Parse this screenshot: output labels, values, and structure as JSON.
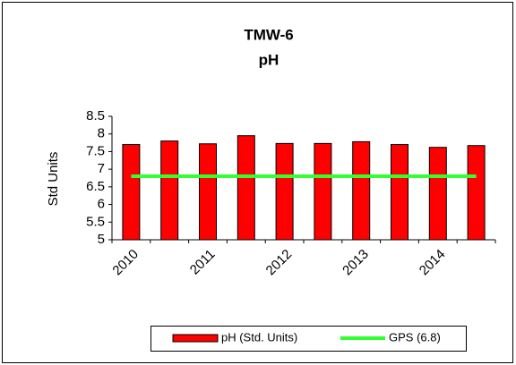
{
  "chart_data": {
    "type": "bar",
    "title": "TMW-6",
    "subtitle": "pH",
    "y_label": "Std Units",
    "categories": [
      "2010",
      null,
      "2011",
      null,
      "2012",
      null,
      "2013",
      null,
      "2014",
      null
    ],
    "series": [
      {
        "name": "pH (Std. Units)",
        "type": "bar",
        "color": "#ff0000",
        "values": [
          7.7,
          7.8,
          7.72,
          7.95,
          7.73,
          7.73,
          7.78,
          7.7,
          7.62,
          7.67
        ]
      },
      {
        "name": "GPS (6.8)",
        "type": "line",
        "color": "#33ff33",
        "values": [
          6.8,
          6.8,
          6.8,
          6.8,
          6.8,
          6.8,
          6.8,
          6.8,
          6.8,
          6.8
        ]
      }
    ],
    "ylim": [
      5,
      8.5
    ],
    "yticks": [
      5,
      5.5,
      6,
      6.5,
      7,
      7.5,
      8,
      8.5
    ],
    "grid": false,
    "legend": "bottom"
  }
}
